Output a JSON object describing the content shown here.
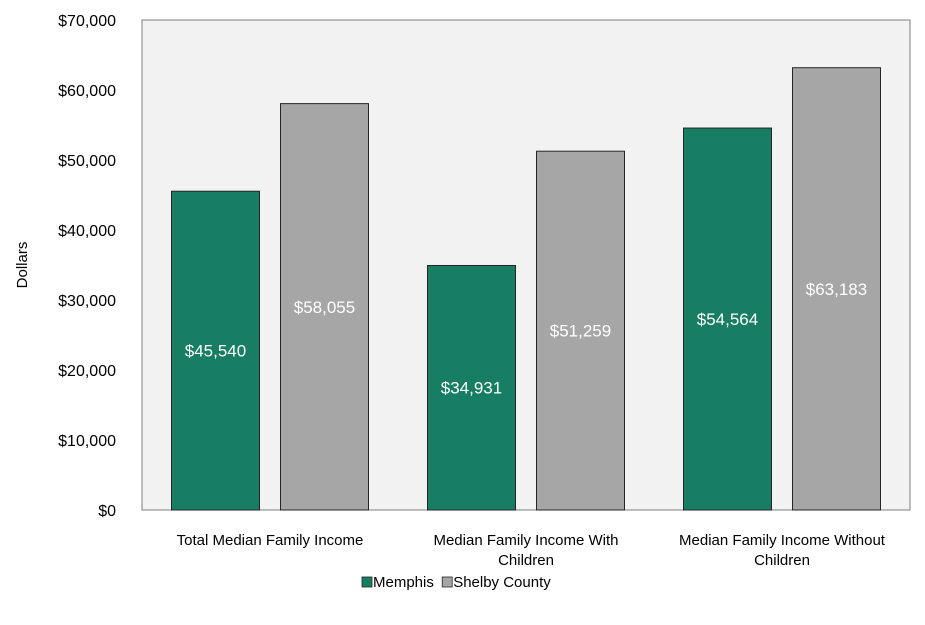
{
  "chart_data": {
    "type": "bar",
    "categories": [
      [
        "Total Median Family Income"
      ],
      [
        "Median Family Income With",
        "Children"
      ],
      [
        "Median Family Income Without",
        "Children"
      ]
    ],
    "series": [
      {
        "name": "Memphis",
        "color": "#177e63",
        "values": [
          45540,
          34931,
          54564
        ],
        "labels": [
          "$45,540",
          "$34,931",
          "$54,564"
        ]
      },
      {
        "name": "Shelby County",
        "color": "#a6a6a6",
        "values": [
          58055,
          51259,
          63183
        ],
        "labels": [
          "$58,055",
          "$51,259",
          "$63,183"
        ]
      }
    ],
    "ylabel": "Dollars",
    "ylim": [
      0,
      70000
    ],
    "yticks": [
      0,
      10000,
      20000,
      30000,
      40000,
      50000,
      60000,
      70000
    ],
    "ytick_labels": [
      "$0",
      "$10,000",
      "$20,000",
      "$30,000",
      "$40,000",
      "$50,000",
      "$60,000",
      "$70,000"
    ],
    "plot_background": "#f2f2f2",
    "grid": false,
    "legend_position": "bottom"
  }
}
